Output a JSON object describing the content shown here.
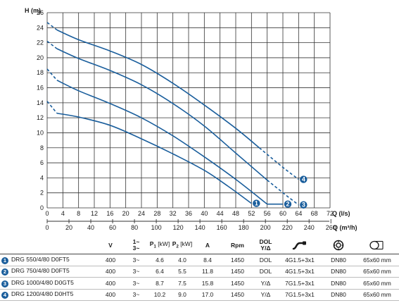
{
  "chart_data": {
    "type": "line",
    "y_axis": {
      "title": "H (m)",
      "range": [
        0,
        26
      ],
      "ticks": [
        "0",
        "2",
        "4",
        "6",
        "8",
        "10",
        "12",
        "14",
        "16",
        "18",
        "20",
        "22",
        "24",
        "26"
      ]
    },
    "x_axis_ls": {
      "title": "Q (l/s)",
      "range": [
        0,
        72
      ],
      "ticks": [
        "0",
        "4",
        "8",
        "12",
        "16",
        "20",
        "24",
        "28",
        "32",
        "36",
        "40",
        "44",
        "48",
        "52",
        "56",
        "60",
        "64",
        "68",
        "72"
      ]
    },
    "x_axis_m3h": {
      "title": "Q (m³/h)",
      "range": [
        0,
        260
      ],
      "ticks": [
        "0",
        "20",
        "40",
        "60",
        "80",
        "100",
        "120",
        "140",
        "160",
        "180",
        "200",
        "220",
        "240",
        "260"
      ]
    },
    "grid": true,
    "line_color": "#1a5e9c",
    "series": [
      {
        "marker": "1",
        "dashed": [
          [
            0,
            14.2
          ],
          [
            2.5,
            12.6
          ]
        ],
        "solid": [
          [
            2.5,
            12.6
          ],
          [
            8,
            12.1
          ],
          [
            16,
            11.0
          ],
          [
            24,
            9.2
          ],
          [
            32,
            7.2
          ],
          [
            40,
            5.0
          ],
          [
            46,
            2.9
          ],
          [
            52,
            0.6
          ]
        ]
      },
      {
        "marker": "2",
        "dashed": [
          [
            0,
            18.5
          ],
          [
            2.5,
            17.0
          ]
        ],
        "solid": [
          [
            2.5,
            17.0
          ],
          [
            8,
            15.6
          ],
          [
            16,
            13.9
          ],
          [
            24,
            12.0
          ],
          [
            32,
            9.6
          ],
          [
            40,
            6.8
          ],
          [
            48,
            3.8
          ],
          [
            56,
            0.5
          ]
        ],
        "tail": [
          [
            56,
            0.5
          ],
          [
            60,
            0.5
          ]
        ]
      },
      {
        "marker": "3",
        "dashed": [
          [
            0,
            22.2
          ],
          [
            2.5,
            21.2
          ]
        ],
        "solid": [
          [
            2.5,
            21.2
          ],
          [
            8,
            19.9
          ],
          [
            16,
            18.3
          ],
          [
            24,
            16.4
          ],
          [
            32,
            13.9
          ],
          [
            40,
            10.9
          ],
          [
            48,
            7.3
          ],
          [
            56,
            3.7
          ]
        ],
        "dashed_tail": [
          [
            56,
            3.7
          ],
          [
            61,
            1.6
          ],
          [
            64,
            0.4
          ]
        ]
      },
      {
        "marker": "4",
        "dashed": [
          [
            0,
            24.7
          ],
          [
            2.5,
            23.7
          ]
        ],
        "solid": [
          [
            2.5,
            23.7
          ],
          [
            8,
            22.4
          ],
          [
            16,
            20.9
          ],
          [
            24,
            19.1
          ],
          [
            32,
            16.6
          ],
          [
            40,
            13.7
          ],
          [
            48,
            10.6
          ],
          [
            54,
            8.0
          ]
        ],
        "dashed_tail": [
          [
            54,
            8.0
          ],
          [
            60,
            5.4
          ],
          [
            64,
            3.8
          ]
        ]
      }
    ]
  },
  "table": {
    "headers": {
      "volt": "V",
      "phase_top": "1~",
      "phase_bot": "3~",
      "p1": "P",
      "p1_sub": "1",
      "p1_unit": "[kW]",
      "p2": "P",
      "p2_sub": "2",
      "p2_unit": "[kW]",
      "amp": "A",
      "rpm": "Rpm",
      "start_top": "DOL",
      "start_bot": "Y/Δ"
    },
    "rows": [
      {
        "no": "1",
        "model": "DRG 550/4/80 D0FT5",
        "v": "400",
        "ph": "3~",
        "p1": "4.6",
        "p2": "4.0",
        "a": "8.4",
        "rpm": "1450",
        "start": "DOL",
        "cable": "4G1.5+3x1",
        "dn": "DN80",
        "size": "65x60 mm"
      },
      {
        "no": "2",
        "model": "DRG 750/4/80 D0FT5",
        "v": "400",
        "ph": "3~",
        "p1": "6.4",
        "p2": "5.5",
        "a": "11.8",
        "rpm": "1450",
        "start": "DOL",
        "cable": "4G1.5+3x1",
        "dn": "DN80",
        "size": "65x60 mm"
      },
      {
        "no": "3",
        "model": "DRG 1000/4/80 D0GT5",
        "v": "400",
        "ph": "3~",
        "p1": "8.7",
        "p2": "7.5",
        "a": "15.8",
        "rpm": "1450",
        "start": "Y/Δ",
        "cable": "7G1.5+3x1",
        "dn": "DN80",
        "size": "65x60 mm"
      },
      {
        "no": "4",
        "model": "DRG 1200/4/80 D0HT5",
        "v": "400",
        "ph": "3~",
        "p1": "10.2",
        "p2": "9.0",
        "a": "17.0",
        "rpm": "1450",
        "start": "Y/Δ",
        "cable": "7G1.5+3x1",
        "dn": "DN80",
        "size": "65x60 mm"
      }
    ]
  }
}
